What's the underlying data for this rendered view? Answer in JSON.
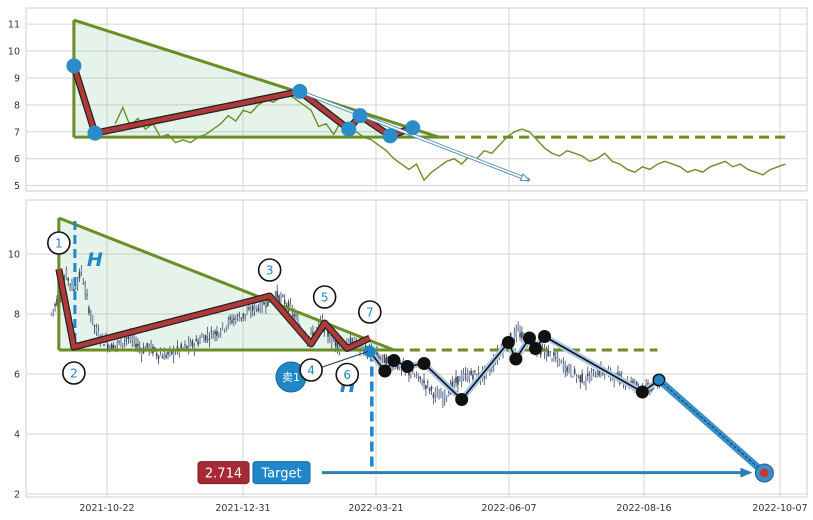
{
  "chart_data": [
    {
      "type": "line",
      "panel": "top",
      "ylim": [
        4.8,
        11.6
      ],
      "xlim": [
        0,
        100
      ],
      "yticks": [
        "5",
        "6",
        "7",
        "8",
        "9",
        "10",
        "11"
      ],
      "grid": true,
      "series": [
        {
          "color": "#6b8e23",
          "x": [
            10,
            11,
            12,
            13,
            14,
            15,
            16,
            17,
            18,
            19,
            20,
            21,
            22,
            23,
            24,
            25,
            26,
            27,
            28,
            29,
            30,
            31,
            32,
            33,
            34,
            35,
            36,
            37,
            38,
            39,
            40,
            41,
            42,
            43,
            44,
            45,
            46,
            47,
            48,
            49,
            50,
            51,
            52,
            53,
            54,
            55,
            56,
            57,
            58,
            59,
            60,
            61,
            62,
            63,
            64,
            65,
            66,
            67,
            68,
            69,
            70,
            71,
            72,
            73,
            74,
            75,
            76,
            77,
            78,
            79,
            80,
            81,
            82,
            83,
            84,
            85,
            86,
            87,
            88,
            89,
            90,
            91,
            92,
            93,
            94,
            95,
            96,
            97,
            98,
            99
          ],
          "y": [
            7.3,
            7.9,
            7.2,
            7.5,
            7.1,
            7.3,
            6.8,
            6.9,
            6.6,
            6.7,
            6.6,
            6.8,
            6.9,
            7.1,
            7.3,
            7.6,
            7.4,
            7.8,
            7.7,
            8.0,
            8.2,
            8.1,
            8.3,
            8.4,
            8.2,
            8.0,
            7.8,
            7.2,
            7.3,
            6.9,
            7.4,
            7.1,
            7.0,
            6.8,
            6.7,
            6.5,
            6.3,
            6.0,
            5.8,
            5.6,
            5.8,
            5.2,
            5.5,
            5.7,
            5.9,
            6.0,
            5.8,
            6.1,
            6.0,
            6.3,
            6.2,
            6.5,
            6.8,
            7.0,
            7.1,
            7.0,
            6.7,
            6.4,
            6.2,
            6.1,
            6.3,
            6.2,
            6.1,
            5.9,
            6.0,
            6.2,
            5.9,
            5.8,
            5.6,
            5.5,
            5.7,
            5.6,
            5.8,
            5.9,
            5.8,
            5.7,
            5.5,
            5.6,
            5.5,
            5.7,
            5.8,
            5.9,
            5.7,
            5.8,
            5.6,
            5.5,
            5.4,
            5.6,
            5.7,
            5.8
          ]
        }
      ],
      "pattern_points": [
        {
          "x": 4.5,
          "y": 9.45
        },
        {
          "x": 7.3,
          "y": 6.95
        },
        {
          "x": 34.5,
          "y": 8.5
        },
        {
          "x": 41.0,
          "y": 7.1
        },
        {
          "x": 42.5,
          "y": 7.6
        },
        {
          "x": 46.5,
          "y": 6.85
        },
        {
          "x": 49.5,
          "y": 7.15
        }
      ],
      "triangle": {
        "apex": {
          "x": 4.5,
          "y": 11.15
        },
        "base_left": {
          "x": 4.5,
          "y": 6.8
        },
        "end": {
          "x": 53,
          "y": 6.8
        }
      },
      "support_level": 6.8,
      "support_end_x": 99,
      "projection": {
        "from": {
          "x": 34.5,
          "y": 8.5
        },
        "to": {
          "x": 65,
          "y": 5.2
        }
      }
    },
    {
      "type": "candlestick",
      "panel": "bottom",
      "ylim": [
        1.9,
        11.8
      ],
      "xlim": [
        0,
        100
      ],
      "xticks": [
        "2021-10-22",
        "2021-12-31",
        "2022-03-21",
        "2022-06-07",
        "2022-08-16",
        "2022-10-07"
      ],
      "yticks": [
        "2",
        "4",
        "6",
        "8",
        "10"
      ],
      "grid": true,
      "closes": [
        8.0,
        8.6,
        9.3,
        8.8,
        9.4,
        8.2,
        7.4,
        7.1,
        6.9,
        7.0,
        7.2,
        7.1,
        6.8,
        6.9,
        6.7,
        6.6,
        6.7,
        6.8,
        6.9,
        7.0,
        7.2,
        7.3,
        7.4,
        7.6,
        7.8,
        7.9,
        8.0,
        8.2,
        8.3,
        8.5,
        8.6,
        8.4,
        8.1,
        7.6,
        7.2,
        7.4,
        7.7,
        7.2,
        7.0,
        6.9,
        7.1,
        6.9,
        6.8,
        6.6,
        6.5,
        6.4,
        6.3,
        6.1,
        6.0,
        5.8,
        5.6,
        5.3,
        5.2,
        5.5,
        5.8,
        5.9,
        6.0,
        5.9,
        6.1,
        6.5,
        6.9,
        7.2,
        7.4,
        7.1,
        7.0,
        6.8,
        6.7,
        6.5,
        6.3,
        6.1,
        5.9,
        5.8,
        6.0,
        6.1,
        6.0,
        5.9,
        5.8,
        5.7,
        5.6,
        5.5,
        5.6,
        5.8
      ],
      "wave_labels": [
        "1",
        "2",
        "3",
        "4",
        "5",
        "6",
        "7"
      ],
      "wave_points": [
        {
          "x": 2.5,
          "y": 9.5
        },
        {
          "x": 4.5,
          "y": 6.9
        },
        {
          "x": 30.5,
          "y": 8.6
        },
        {
          "x": 36.0,
          "y": 7.0
        },
        {
          "x": 37.8,
          "y": 7.7
        },
        {
          "x": 40.8,
          "y": 6.85
        },
        {
          "x": 43.8,
          "y": 7.2
        }
      ],
      "triangle": {
        "apex": {
          "x": 2.5,
          "y": 11.2
        },
        "base_left": {
          "x": 2.5,
          "y": 6.8
        },
        "end": {
          "x": 47,
          "y": 6.8
        }
      },
      "support_level": 6.8,
      "support_end_x": 82,
      "h_marker": "H",
      "sell_label": "卖1",
      "path_points": [
        {
          "x": 43.8,
          "y": 6.75
        },
        {
          "x": 45.8,
          "y": 6.1
        },
        {
          "x": 47.0,
          "y": 6.45
        },
        {
          "x": 48.8,
          "y": 6.25
        },
        {
          "x": 51.0,
          "y": 6.35
        },
        {
          "x": 56.0,
          "y": 5.15
        },
        {
          "x": 62.2,
          "y": 7.05
        },
        {
          "x": 63.2,
          "y": 6.5
        },
        {
          "x": 65.0,
          "y": 7.2
        },
        {
          "x": 65.8,
          "y": 6.85
        },
        {
          "x": 67.0,
          "y": 7.25
        },
        {
          "x": 80.0,
          "y": 5.4
        },
        {
          "x": 82.2,
          "y": 5.8
        }
      ],
      "projection": {
        "from": {
          "x": 82.2,
          "y": 5.8
        },
        "to": {
          "x": 96.2,
          "y": 2.7
        }
      },
      "target": {
        "value": "2.714",
        "label": "Target",
        "y": 2.714
      }
    }
  ]
}
